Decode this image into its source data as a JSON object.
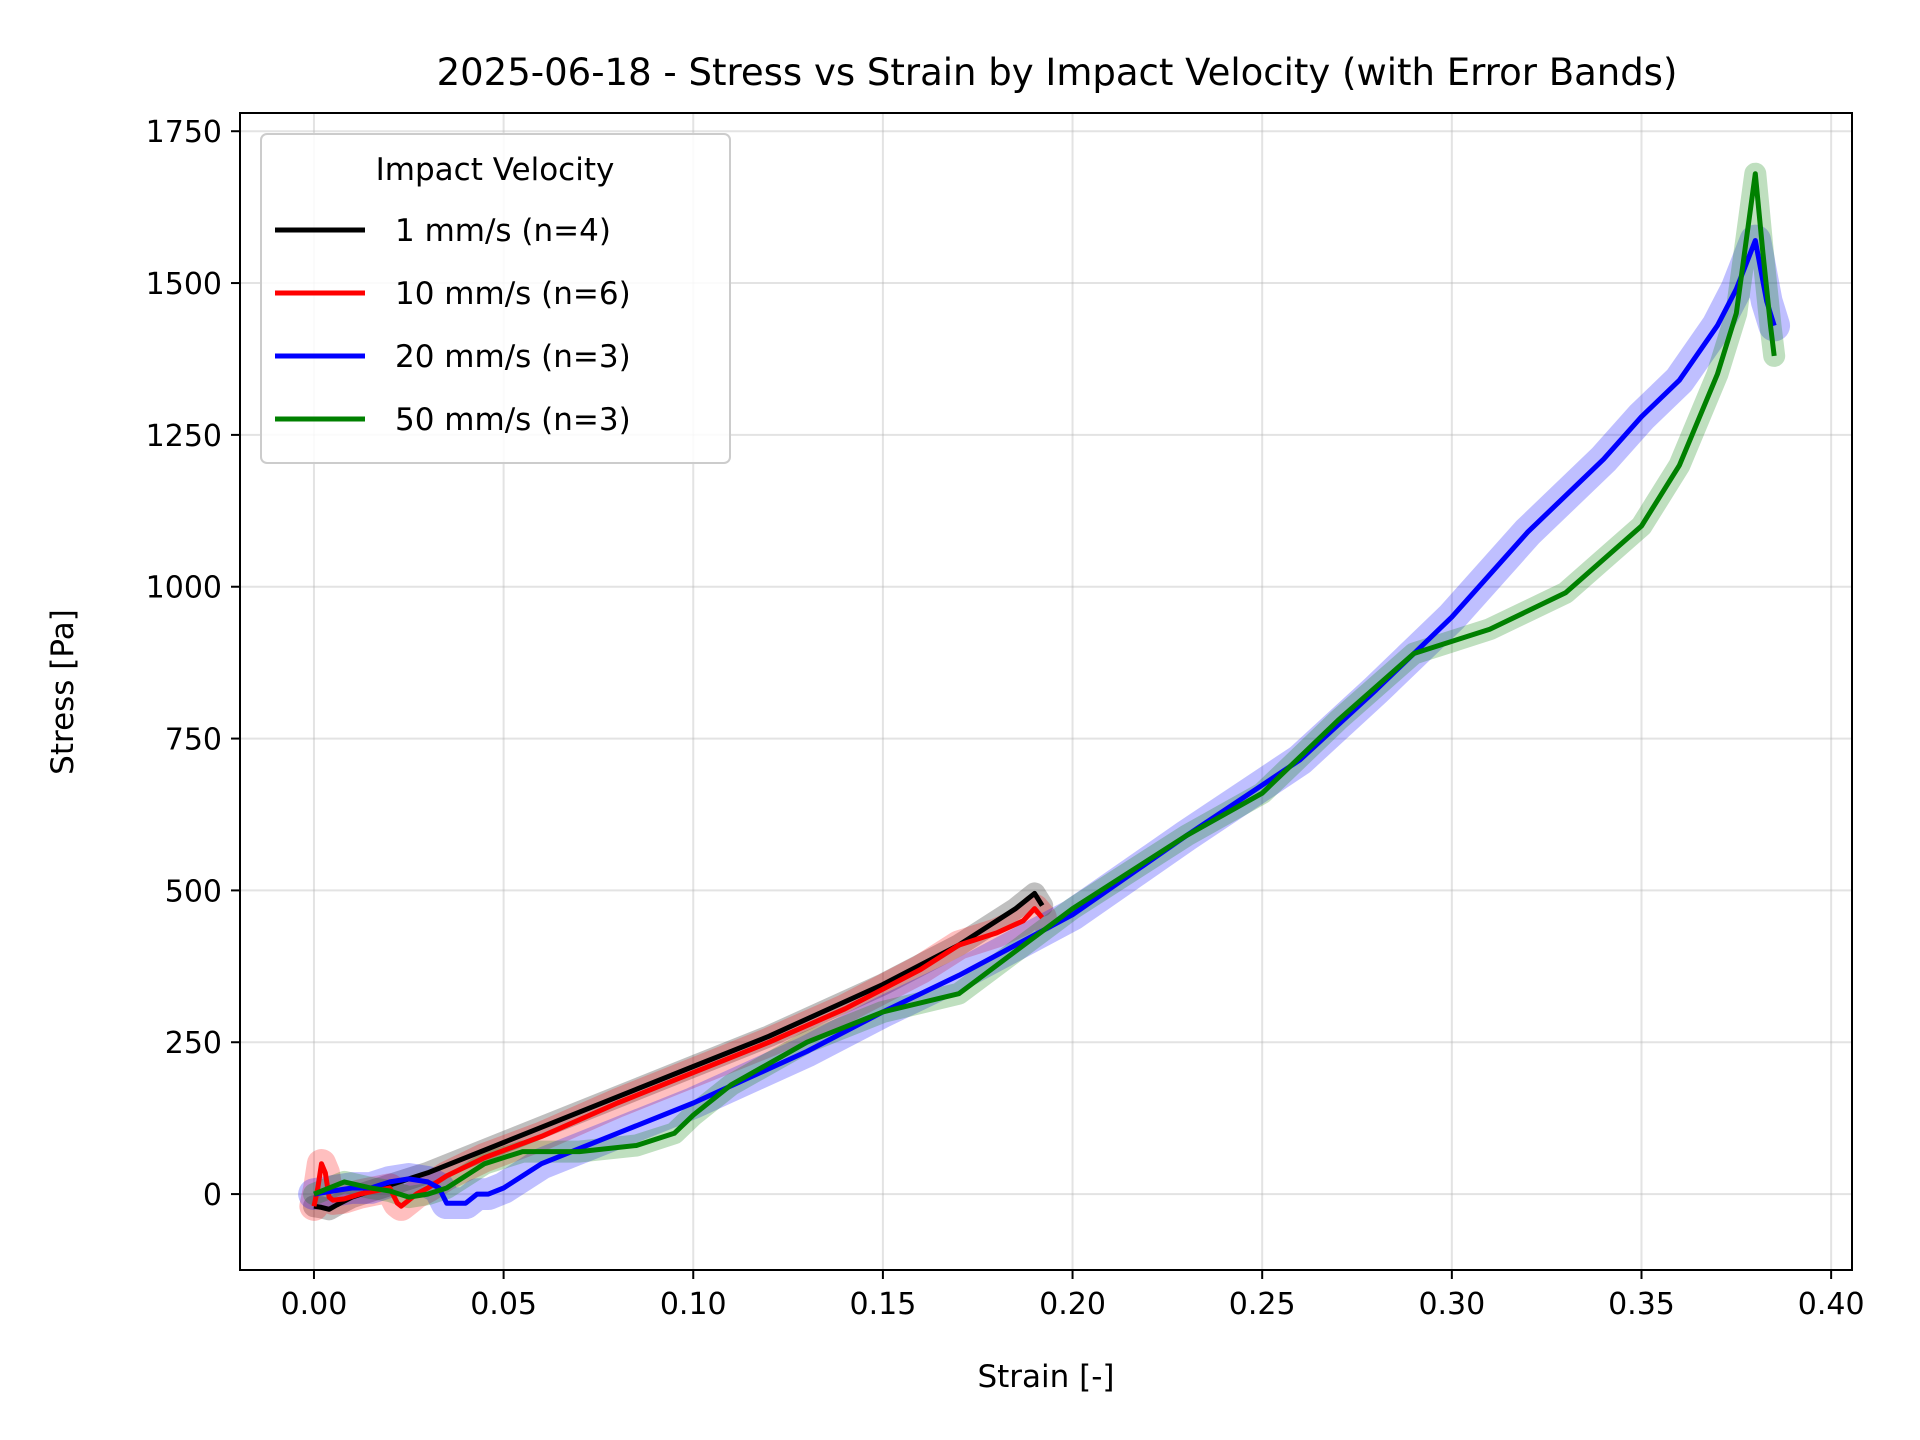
{
  "chart_data": {
    "type": "line",
    "title": "2025-06-18 - Stress vs Strain by Impact Velocity (with Error Bands)",
    "xlabel": "Strain [-]",
    "ylabel": "Stress [Pa]",
    "xlim": [
      -0.0195,
      0.4055
    ],
    "ylim": [
      -125,
      1780
    ],
    "xticks": [
      0.0,
      0.05,
      0.1,
      0.15,
      0.2,
      0.25,
      0.3,
      0.35,
      0.4
    ],
    "xtick_labels": [
      "0.00",
      "0.05",
      "0.10",
      "0.15",
      "0.20",
      "0.25",
      "0.30",
      "0.35",
      "0.40"
    ],
    "yticks": [
      0,
      250,
      500,
      750,
      1000,
      1250,
      1500,
      1750
    ],
    "ytick_labels": [
      "0",
      "250",
      "500",
      "750",
      "1000",
      "1250",
      "1500",
      "1750"
    ],
    "grid": true,
    "legend": {
      "title": "Impact Velocity",
      "placement": "upper-left"
    },
    "series": [
      {
        "name": "1 mm/s (n=4)",
        "color": "#000000",
        "band": 14,
        "x": [
          0.0,
          0.002,
          0.004,
          0.006,
          0.01,
          0.02,
          0.03,
          0.05,
          0.07,
          0.1,
          0.12,
          0.15,
          0.17,
          0.185,
          0.19,
          0.192
        ],
        "y": [
          -20,
          -22,
          -25,
          -18,
          -5,
          15,
          35,
          85,
          135,
          210,
          260,
          345,
          410,
          470,
          495,
          475
        ]
      },
      {
        "name": "10 mm/s (n=6)",
        "color": "#ff0000",
        "band": 20,
        "x": [
          0.0,
          0.001,
          0.002,
          0.003,
          0.004,
          0.005,
          0.008,
          0.012,
          0.016,
          0.02,
          0.022,
          0.023,
          0.025,
          0.027,
          0.03,
          0.035,
          0.045,
          0.06,
          0.08,
          0.1,
          0.12,
          0.14,
          0.16,
          0.17,
          0.18,
          0.187,
          0.19,
          0.192
        ],
        "y": [
          -20,
          10,
          50,
          35,
          -5,
          -10,
          -8,
          0,
          5,
          10,
          -15,
          -20,
          -10,
          0,
          10,
          30,
          60,
          95,
          150,
          200,
          250,
          305,
          370,
          410,
          430,
          450,
          470,
          455
        ]
      },
      {
        "name": "20 mm/s (n=3)",
        "color": "#0000ff",
        "band": 22,
        "x": [
          0.0,
          0.005,
          0.01,
          0.015,
          0.02,
          0.025,
          0.03,
          0.033,
          0.035,
          0.04,
          0.043,
          0.046,
          0.05,
          0.06,
          0.08,
          0.1,
          0.13,
          0.15,
          0.17,
          0.2,
          0.23,
          0.26,
          0.28,
          0.3,
          0.32,
          0.34,
          0.35,
          0.36,
          0.37,
          0.375,
          0.38,
          0.383,
          0.385
        ],
        "y": [
          0,
          5,
          10,
          10,
          20,
          25,
          20,
          10,
          -15,
          -15,
          0,
          0,
          10,
          50,
          100,
          150,
          235,
          300,
          360,
          460,
          590,
          715,
          830,
          950,
          1090,
          1210,
          1280,
          1340,
          1430,
          1490,
          1570,
          1470,
          1430
        ]
      },
      {
        "name": "50 mm/s (n=3)",
        "color": "#008000",
        "band": 14,
        "x": [
          0.0,
          0.008,
          0.015,
          0.02,
          0.025,
          0.03,
          0.035,
          0.045,
          0.055,
          0.07,
          0.085,
          0.095,
          0.1,
          0.11,
          0.13,
          0.15,
          0.17,
          0.2,
          0.23,
          0.25,
          0.27,
          0.29,
          0.3,
          0.31,
          0.33,
          0.35,
          0.36,
          0.37,
          0.375,
          0.38,
          0.382,
          0.384,
          0.385
        ],
        "y": [
          0,
          20,
          10,
          5,
          -5,
          0,
          10,
          50,
          70,
          70,
          80,
          100,
          130,
          180,
          250,
          300,
          330,
          470,
          590,
          660,
          780,
          890,
          910,
          930,
          990,
          1100,
          1200,
          1350,
          1450,
          1680,
          1550,
          1430,
          1380
        ]
      }
    ]
  }
}
